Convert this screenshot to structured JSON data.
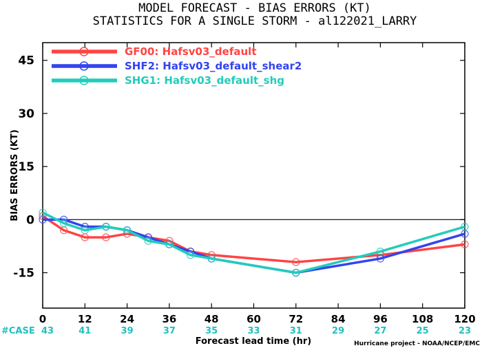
{
  "chart_data": {
    "type": "line",
    "title": "MODEL FORECAST - BIAS ERRORS (KT)",
    "subtitle": "STATISTICS FOR A SINGLE STORM - al122021_LARRY",
    "xlabel": "Forecast lead time (hr)",
    "ylabel": "BIAS ERRORS (KT)",
    "xlim": [
      0,
      120
    ],
    "ylim": [
      -25,
      50
    ],
    "x_ticks": [
      0,
      12,
      24,
      36,
      48,
      60,
      72,
      84,
      96,
      108,
      120
    ],
    "y_ticks": [
      45,
      30,
      15,
      0,
      -15
    ],
    "zero_line": true,
    "legend_position": "top-left",
    "case_label": "#CASE",
    "case_counts": [
      43,
      41,
      39,
      37,
      35,
      33,
      31,
      29,
      27,
      25,
      23
    ],
    "credit": "Hurricane project - NOAA/NCEP/EMC",
    "series": [
      {
        "name": "GF00: Hafsv03_default",
        "color": "#ff4444",
        "x": [
          0,
          6,
          12,
          18,
          24,
          30,
          36,
          42,
          48,
          72,
          96,
          120
        ],
        "y": [
          1,
          -3,
          -5,
          -5,
          -4,
          -5,
          -6,
          -9,
          -10,
          -12,
          -10,
          -7
        ]
      },
      {
        "name": "SHF2: Hafsv03_default_shear2",
        "color": "#3344ee",
        "x": [
          0,
          6,
          12,
          18,
          24,
          30,
          36,
          42,
          48,
          72,
          96,
          120
        ],
        "y": [
          0,
          0,
          -2,
          -2,
          -3,
          -5,
          -7,
          -9,
          -11,
          -15,
          -11,
          -4
        ]
      },
      {
        "name": "SHG1: Hafsv03_default_shg",
        "color": "#22ccbb",
        "x": [
          0,
          6,
          12,
          18,
          24,
          30,
          36,
          42,
          48,
          72,
          96,
          120
        ],
        "y": [
          2,
          -1,
          -3,
          -2,
          -3,
          -6,
          -7,
          -10,
          -11,
          -15,
          -9,
          -2
        ]
      }
    ]
  }
}
